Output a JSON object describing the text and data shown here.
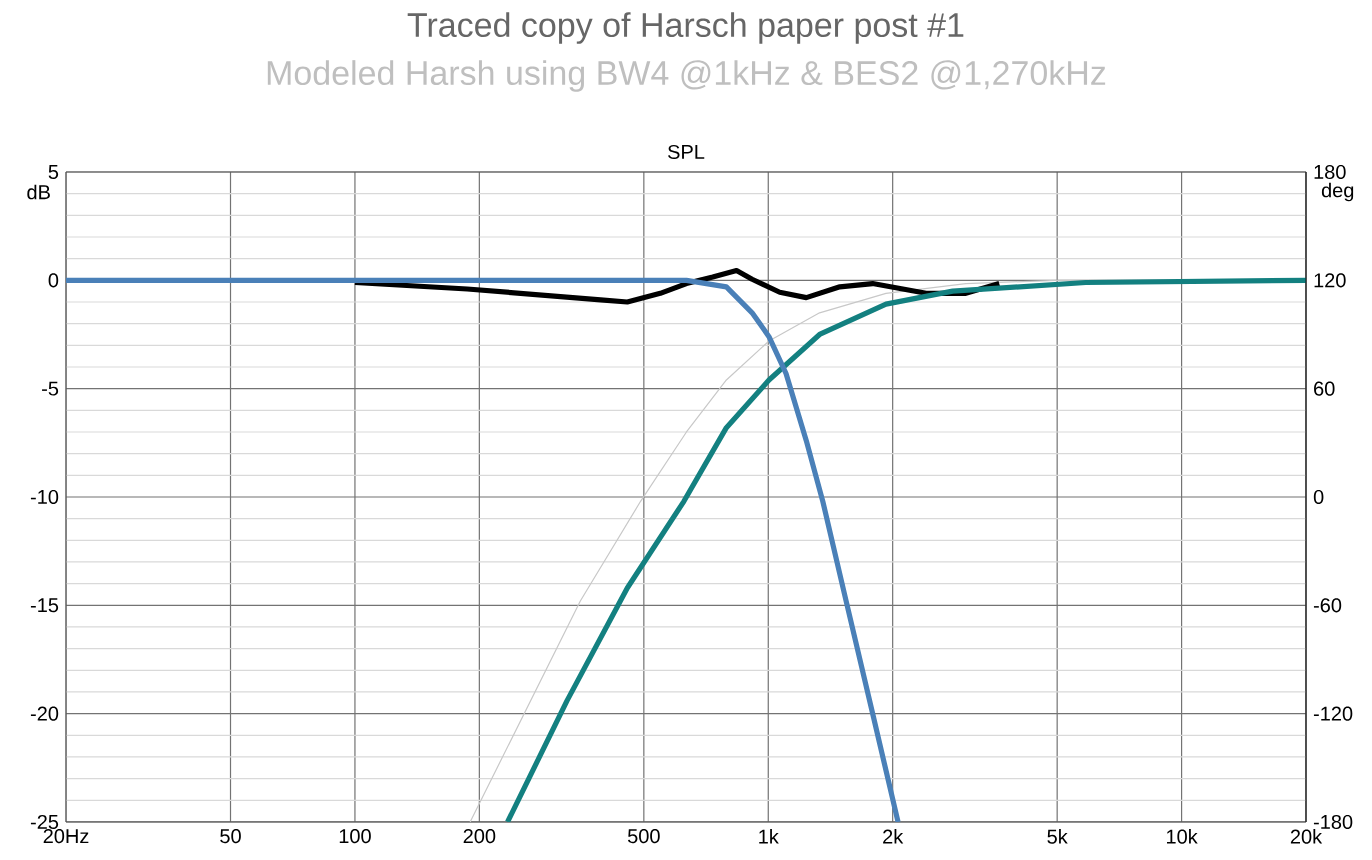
{
  "chart_data": {
    "type": "line",
    "title": "Traced copy of Harsch paper post #1",
    "subtitle": "Modeled Harsh using BW4 @1kHz & BES2 @1,270kHz",
    "annotations": [
      "SPL"
    ],
    "ylabel": "dB",
    "y2label": "deg",
    "log": "x",
    "grid": true,
    "xlim": [
      20,
      20000
    ],
    "ylim": [
      -25,
      5
    ],
    "y2lim": [
      -180,
      180
    ],
    "xticks": [
      {
        "value": 20,
        "label": "20Hz"
      },
      50,
      100,
      200,
      500,
      {
        "value": 1000,
        "label": "1k"
      },
      {
        "value": 2000,
        "label": "2k"
      },
      {
        "value": 5000,
        "label": "5k"
      },
      {
        "value": 10000,
        "label": "10k"
      },
      {
        "value": 20000,
        "label": "20k"
      }
    ],
    "yticks": [
      5,
      0,
      -5,
      -10,
      -15,
      -20,
      -25
    ],
    "y2ticks": [
      180,
      120,
      60,
      0,
      -60,
      -120,
      -180
    ],
    "series": [
      {
        "color": "#c8c8c8",
        "x": [
          190,
          351,
          491,
          634,
          792,
          1004,
          1331,
          1927,
          3006,
          5000,
          20000
        ],
        "values": [
          -25,
          -14.8,
          -10.2,
          -7,
          -4.6,
          -2.8,
          -1.5,
          -0.6,
          -0.15,
          0,
          0
        ]
      },
      {
        "color": "#000000",
        "x": [
          100,
          187,
          393,
          456,
          548,
          634,
          734,
          838,
          914,
          1066,
          1236,
          1490,
          1789,
          2410,
          3006,
          3621
        ],
        "values": [
          -0.1,
          -0.4,
          -0.9,
          -1.0,
          -0.6,
          -0.15,
          0.15,
          0.45,
          0.05,
          -0.55,
          -0.8,
          -0.3,
          -0.15,
          -0.6,
          -0.6,
          -0.15
        ]
      },
      {
        "color": "#138080",
        "x": [
          234,
          326,
          456,
          625,
          792,
          1004,
          1331,
          1927,
          2793,
          5864,
          20000
        ],
        "values": [
          -25,
          -19.4,
          -14.2,
          -10.2,
          -6.8,
          -4.6,
          -2.5,
          -1.1,
          -0.5,
          -0.1,
          0
        ]
      },
      {
        "color": "#4a80b8",
        "x": [
          20,
          100,
          634,
          792,
          914,
          1004,
          1104,
          1236,
          1355,
          1543,
          1789,
          2061
        ],
        "values": [
          0,
          0,
          0,
          -0.3,
          -1.5,
          -2.6,
          -4.3,
          -7.4,
          -10.2,
          -14.8,
          -20,
          -25
        ]
      }
    ]
  }
}
